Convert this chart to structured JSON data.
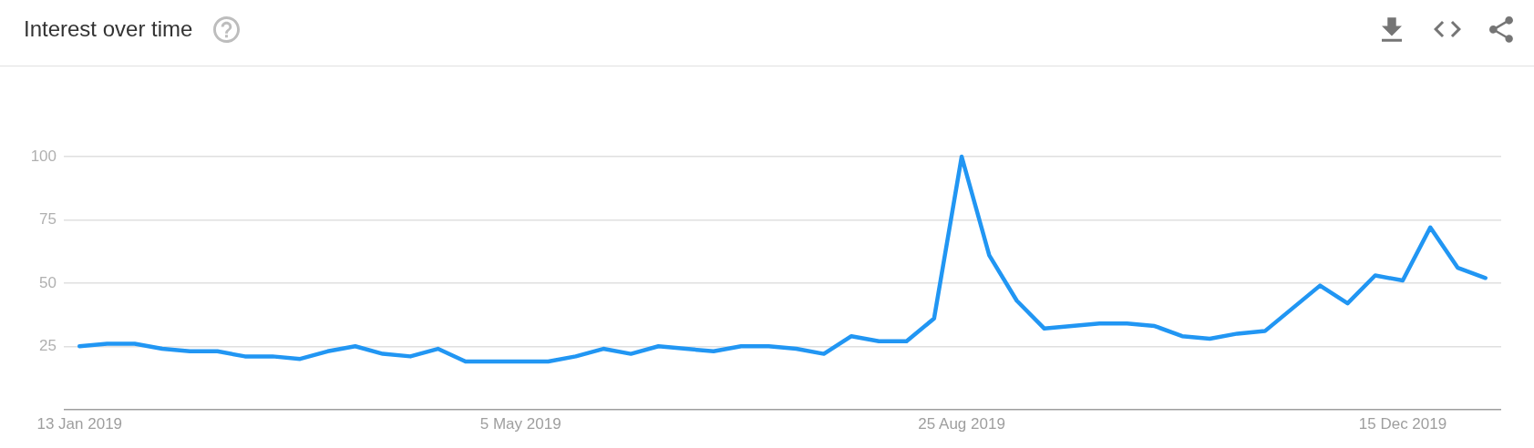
{
  "chart_data": {
    "type": "line",
    "title": "Interest over time",
    "x": [
      "2019-01-13",
      "2019-01-20",
      "2019-01-27",
      "2019-02-03",
      "2019-02-10",
      "2019-02-17",
      "2019-02-24",
      "2019-03-03",
      "2019-03-10",
      "2019-03-17",
      "2019-03-24",
      "2019-03-31",
      "2019-04-07",
      "2019-04-14",
      "2019-04-21",
      "2019-04-28",
      "2019-05-05",
      "2019-05-12",
      "2019-05-19",
      "2019-05-26",
      "2019-06-02",
      "2019-06-09",
      "2019-06-16",
      "2019-06-23",
      "2019-06-30",
      "2019-07-07",
      "2019-07-14",
      "2019-07-21",
      "2019-07-28",
      "2019-08-04",
      "2019-08-11",
      "2019-08-18",
      "2019-08-25",
      "2019-09-01",
      "2019-09-08",
      "2019-09-15",
      "2019-09-22",
      "2019-09-29",
      "2019-10-06",
      "2019-10-13",
      "2019-10-20",
      "2019-10-27",
      "2019-11-03",
      "2019-11-10",
      "2019-11-17",
      "2019-11-24",
      "2019-12-01",
      "2019-12-08",
      "2019-12-15",
      "2019-12-22",
      "2019-12-29",
      "2020-01-05"
    ],
    "values": [
      25,
      26,
      26,
      24,
      23,
      23,
      21,
      21,
      20,
      23,
      25,
      22,
      21,
      24,
      19,
      19,
      19,
      19,
      21,
      24,
      22,
      25,
      24,
      23,
      25,
      25,
      24,
      22,
      29,
      27,
      27,
      36,
      100,
      61,
      43,
      32,
      33,
      34,
      34,
      33,
      29,
      28,
      30,
      31,
      40,
      49,
      42,
      53,
      51,
      72,
      56,
      52
    ],
    "color": "#2196f3",
    "xlim": [
      "2019-01-09",
      "2020-01-09"
    ],
    "xticks": [
      {
        "value": "2019-01-13",
        "label": "13 Jan 2019"
      },
      {
        "value": "2019-05-05",
        "label": "5 May 2019"
      },
      {
        "value": "2019-08-25",
        "label": "25 Aug 2019"
      },
      {
        "value": "2019-12-15",
        "label": "15 Dec 2019"
      }
    ],
    "ylim": [
      0,
      100
    ],
    "yticks": [
      {
        "value": 0,
        "label": null
      },
      25,
      50,
      75,
      100
    ],
    "grid": "y"
  }
}
